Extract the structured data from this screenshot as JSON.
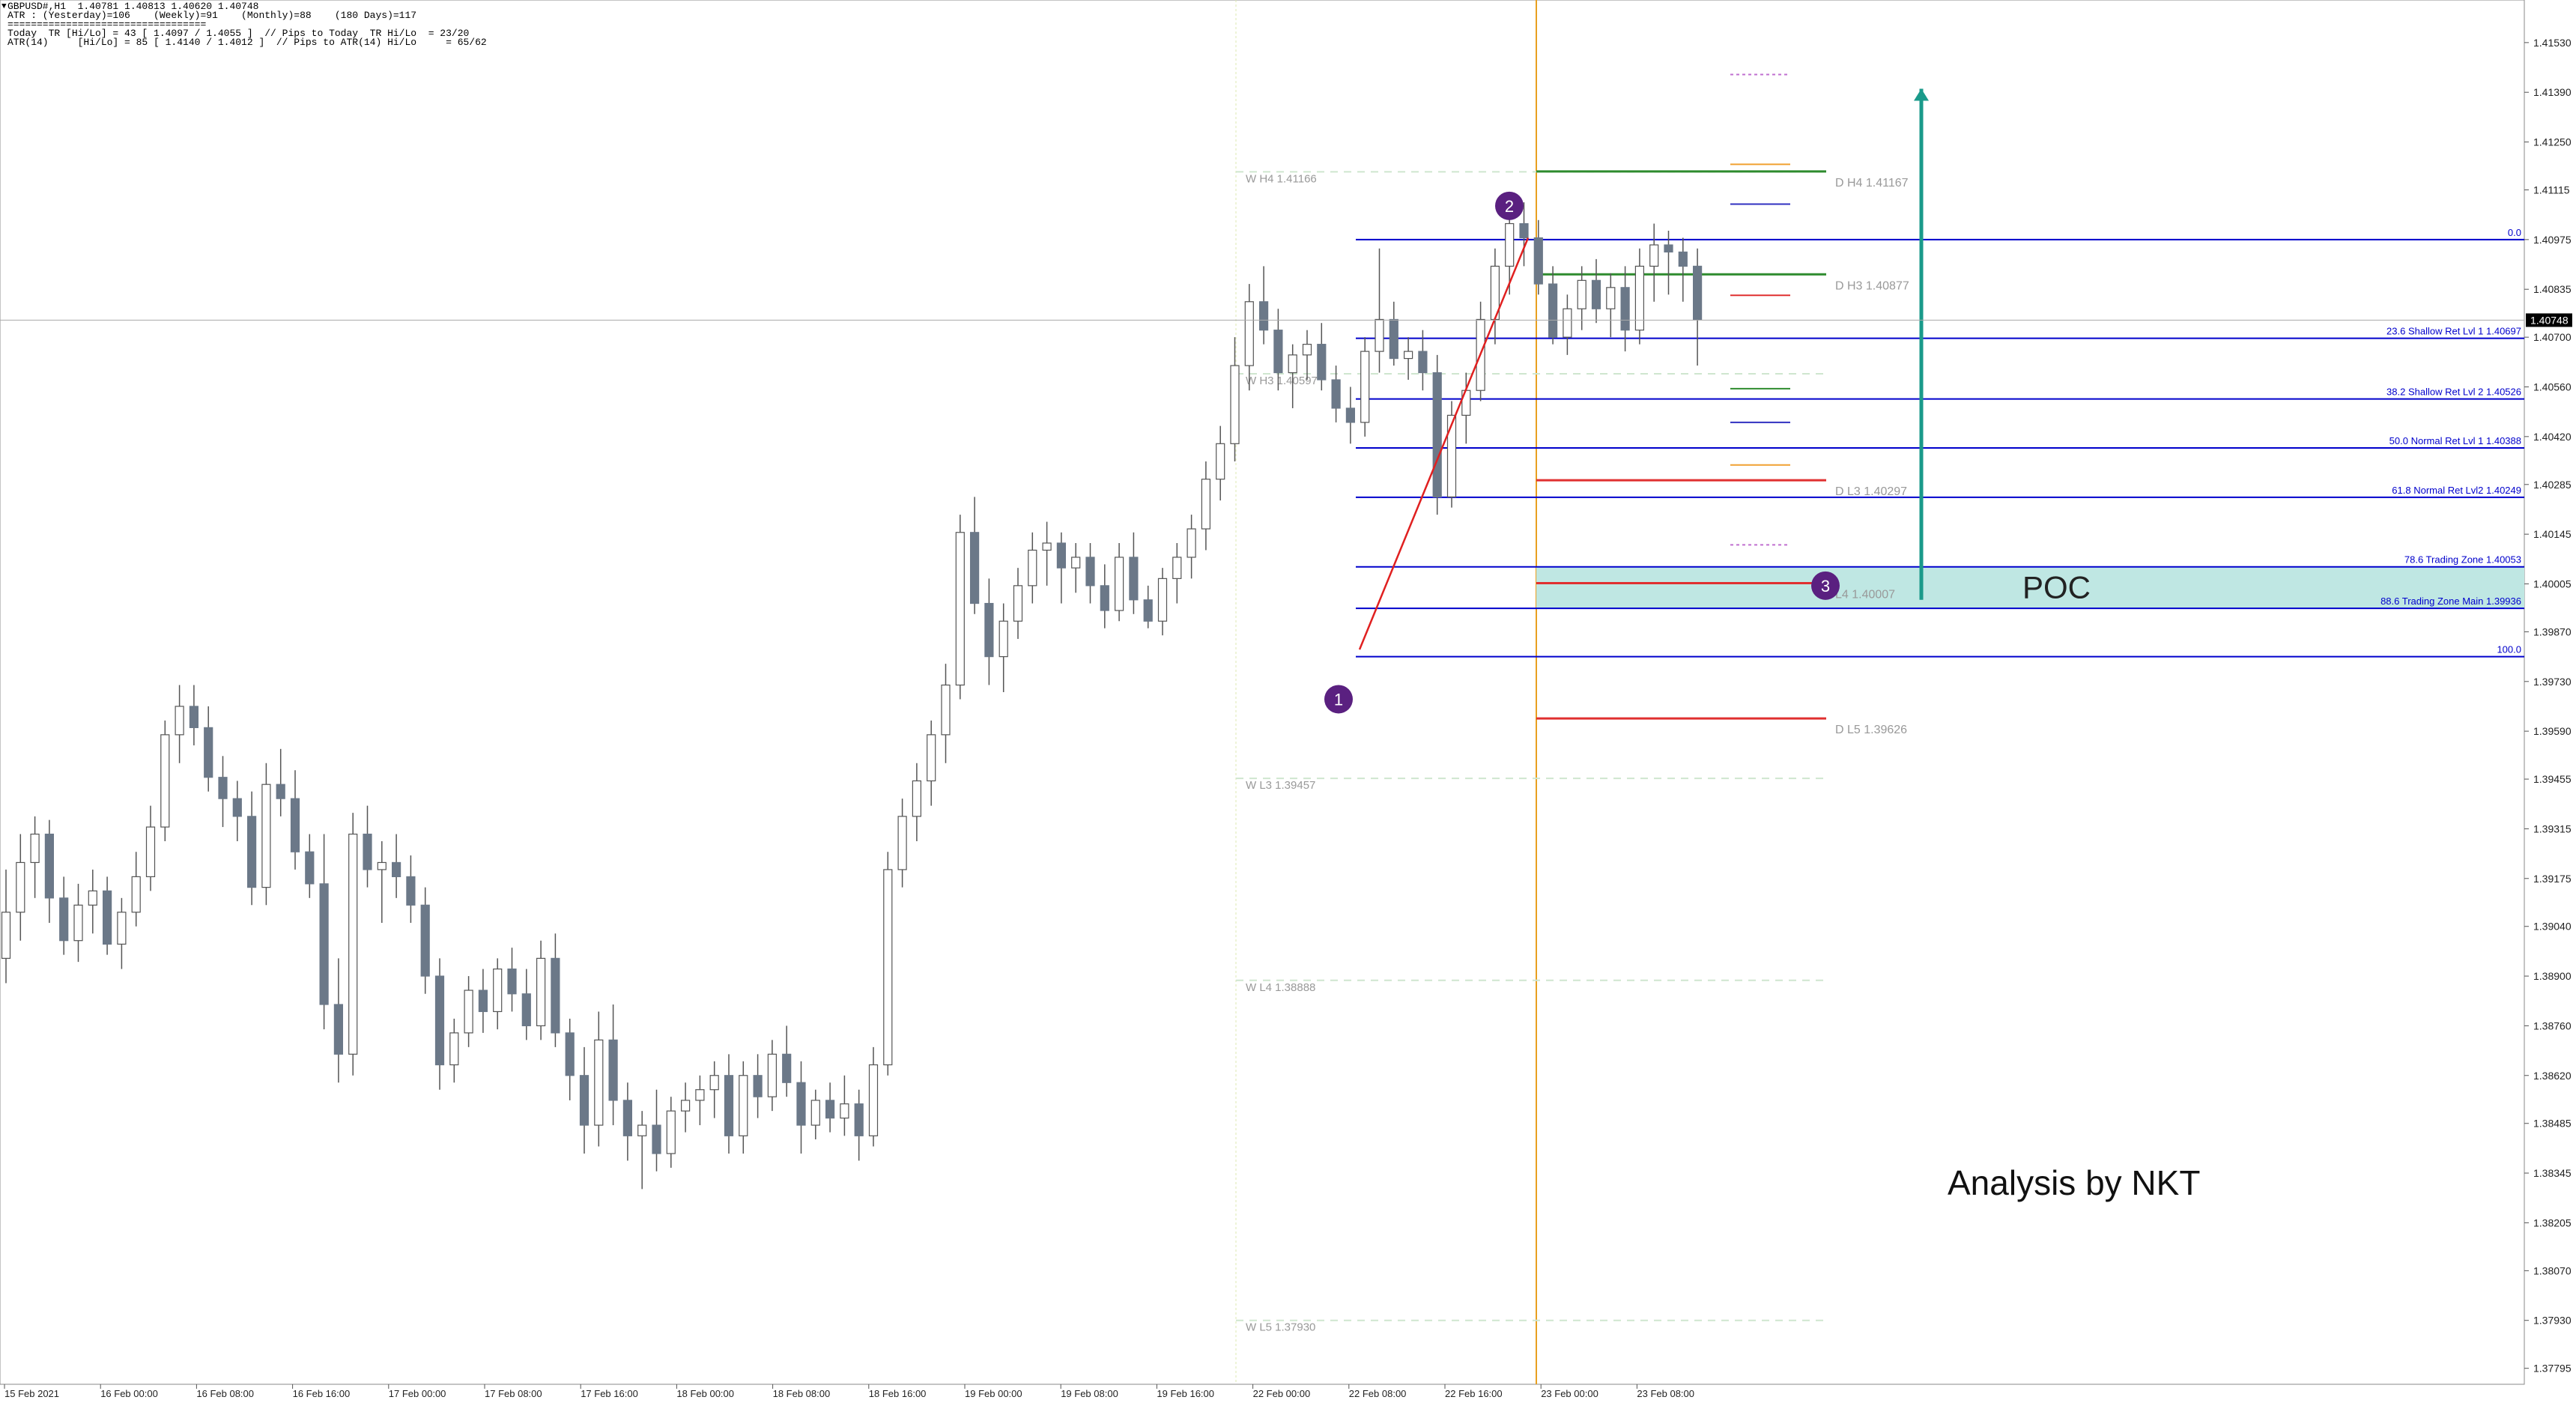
{
  "header": {
    "symbol_line": "GBPUSD#,H1  1.40781 1.40813 1.40620 1.40748",
    "atr_line": "ATR : (Yesterday)=106    (Weekly)=91    (Monthly)=88    (180 Days)=117",
    "separator": "==================================",
    "today_line": "Today  TR [Hi/Lo] = 43 [ 1.4097 / 1.4055 ]  // Pips to Today  TR Hi/Lo  = 23/20",
    "atr14_line": "ATR(14)     [Hi/Lo] = 85 [ 1.4140 / 1.4012 ]  // Pips to ATR(14) Hi/Lo     = 65/62"
  },
  "price_axis": {
    "ticks": [
      "1.41530",
      "1.41390",
      "1.41250",
      "1.41115",
      "1.40975",
      "1.40835",
      "1.40700",
      "1.40560",
      "1.40420",
      "1.40285",
      "1.40145",
      "1.40005",
      "1.39870",
      "1.39730",
      "1.39590",
      "1.39455",
      "1.39315",
      "1.39175",
      "1.39040",
      "1.38900",
      "1.38760",
      "1.38620",
      "1.38485",
      "1.38345",
      "1.38205",
      "1.38070",
      "1.37930",
      "1.37795"
    ],
    "current_price": "1.40748"
  },
  "time_axis": {
    "labels": [
      "15 Feb 2021",
      "16 Feb 00:00",
      "16 Feb 08:00",
      "16 Feb 16:00",
      "17 Feb 00:00",
      "17 Feb 08:00",
      "17 Feb 16:00",
      "18 Feb 00:00",
      "18 Feb 08:00",
      "18 Feb 16:00",
      "19 Feb 00:00",
      "19 Feb 08:00",
      "19 Feb 16:00",
      "22 Feb 00:00",
      "22 Feb 08:00",
      "22 Feb 16:00",
      "23 Feb 00:00",
      "23 Feb 08:00"
    ]
  },
  "chart_data": {
    "type": "candlestick",
    "symbol": "GBPUSD#",
    "timeframe": "H1",
    "ylim": [
      1.3775,
      1.4165
    ],
    "candles": [
      [
        1.3895,
        1.392,
        1.3888,
        1.3908
      ],
      [
        1.3908,
        1.393,
        1.39,
        1.3922
      ],
      [
        1.3922,
        1.3935,
        1.3912,
        1.393
      ],
      [
        1.393,
        1.3934,
        1.3905,
        1.3912
      ],
      [
        1.3912,
        1.3918,
        1.3896,
        1.39
      ],
      [
        1.39,
        1.3916,
        1.3894,
        1.391
      ],
      [
        1.391,
        1.392,
        1.3902,
        1.3914
      ],
      [
        1.3914,
        1.3918,
        1.3896,
        1.3899
      ],
      [
        1.3899,
        1.3912,
        1.3892,
        1.3908
      ],
      [
        1.3908,
        1.3925,
        1.3904,
        1.3918
      ],
      [
        1.3918,
        1.3938,
        1.3914,
        1.3932
      ],
      [
        1.3932,
        1.3962,
        1.3928,
        1.3958
      ],
      [
        1.3958,
        1.3972,
        1.395,
        1.3966
      ],
      [
        1.3966,
        1.3972,
        1.3955,
        1.396
      ],
      [
        1.396,
        1.3966,
        1.3942,
        1.3946
      ],
      [
        1.3946,
        1.3952,
        1.3932,
        1.394
      ],
      [
        1.394,
        1.3945,
        1.3928,
        1.3935
      ],
      [
        1.3935,
        1.3942,
        1.391,
        1.3915
      ],
      [
        1.3915,
        1.395,
        1.391,
        1.3944
      ],
      [
        1.3944,
        1.3954,
        1.3935,
        1.394
      ],
      [
        1.394,
        1.3948,
        1.392,
        1.3925
      ],
      [
        1.3925,
        1.393,
        1.3912,
        1.3916
      ],
      [
        1.3916,
        1.393,
        1.3875,
        1.3882
      ],
      [
        1.3882,
        1.3895,
        1.386,
        1.3868
      ],
      [
        1.3868,
        1.3936,
        1.3862,
        1.393
      ],
      [
        1.393,
        1.3938,
        1.3915,
        1.392
      ],
      [
        1.392,
        1.3928,
        1.3905,
        1.3922
      ],
      [
        1.3922,
        1.393,
        1.3912,
        1.3918
      ],
      [
        1.3918,
        1.3924,
        1.3905,
        1.391
      ],
      [
        1.391,
        1.3915,
        1.3885,
        1.389
      ],
      [
        1.389,
        1.3895,
        1.3858,
        1.3865
      ],
      [
        1.3865,
        1.3878,
        1.386,
        1.3874
      ],
      [
        1.3874,
        1.389,
        1.387,
        1.3886
      ],
      [
        1.3886,
        1.3892,
        1.3874,
        1.388
      ],
      [
        1.388,
        1.3895,
        1.3875,
        1.3892
      ],
      [
        1.3892,
        1.3898,
        1.388,
        1.3885
      ],
      [
        1.3885,
        1.3892,
        1.3872,
        1.3876
      ],
      [
        1.3876,
        1.39,
        1.3872,
        1.3895
      ],
      [
        1.3895,
        1.3902,
        1.387,
        1.3874
      ],
      [
        1.3874,
        1.3878,
        1.3855,
        1.3862
      ],
      [
        1.3862,
        1.387,
        1.384,
        1.3848
      ],
      [
        1.3848,
        1.388,
        1.3842,
        1.3872
      ],
      [
        1.3872,
        1.3882,
        1.3848,
        1.3855
      ],
      [
        1.3855,
        1.386,
        1.3838,
        1.3845
      ],
      [
        1.3845,
        1.3852,
        1.383,
        1.3848
      ],
      [
        1.3848,
        1.3858,
        1.3835,
        1.384
      ],
      [
        1.384,
        1.3856,
        1.3836,
        1.3852
      ],
      [
        1.3852,
        1.386,
        1.3846,
        1.3855
      ],
      [
        1.3855,
        1.3862,
        1.3848,
        1.3858
      ],
      [
        1.3858,
        1.3866,
        1.385,
        1.3862
      ],
      [
        1.3862,
        1.3868,
        1.384,
        1.3845
      ],
      [
        1.3845,
        1.3866,
        1.384,
        1.3862
      ],
      [
        1.3862,
        1.3868,
        1.385,
        1.3856
      ],
      [
        1.3856,
        1.3872,
        1.3852,
        1.3868
      ],
      [
        1.3868,
        1.3876,
        1.3856,
        1.386
      ],
      [
        1.386,
        1.3866,
        1.384,
        1.3848
      ],
      [
        1.3848,
        1.3858,
        1.3844,
        1.3855
      ],
      [
        1.3855,
        1.386,
        1.3846,
        1.385
      ],
      [
        1.385,
        1.3862,
        1.3845,
        1.3854
      ],
      [
        1.3854,
        1.3858,
        1.3838,
        1.3845
      ],
      [
        1.3845,
        1.387,
        1.3842,
        1.3865
      ],
      [
        1.3865,
        1.3925,
        1.3862,
        1.392
      ],
      [
        1.392,
        1.394,
        1.3915,
        1.3935
      ],
      [
        1.3935,
        1.395,
        1.3928,
        1.3945
      ],
      [
        1.3945,
        1.3962,
        1.3938,
        1.3958
      ],
      [
        1.3958,
        1.3978,
        1.395,
        1.3972
      ],
      [
        1.3972,
        1.402,
        1.3968,
        1.4015
      ],
      [
        1.4015,
        1.4025,
        1.3992,
        1.3995
      ],
      [
        1.3995,
        1.4002,
        1.3972,
        1.398
      ],
      [
        1.398,
        1.3995,
        1.397,
        1.399
      ],
      [
        1.399,
        1.4005,
        1.3985,
        1.4
      ],
      [
        1.4,
        1.4015,
        1.3995,
        1.401
      ],
      [
        1.401,
        1.4018,
        1.4,
        1.4012
      ],
      [
        1.4012,
        1.4015,
        1.3995,
        1.4005
      ],
      [
        1.4005,
        1.4012,
        1.3998,
        1.4008
      ],
      [
        1.4008,
        1.4012,
        1.3995,
        1.4
      ],
      [
        1.4,
        1.4006,
        1.3988,
        1.3993
      ],
      [
        1.3993,
        1.4012,
        1.399,
        1.4008
      ],
      [
        1.4008,
        1.4015,
        1.3992,
        1.3996
      ],
      [
        1.3996,
        1.4,
        1.3988,
        1.399
      ],
      [
        1.399,
        1.4005,
        1.3986,
        1.4002
      ],
      [
        1.4002,
        1.4012,
        1.3995,
        1.4008
      ],
      [
        1.4008,
        1.402,
        1.4002,
        1.4016
      ],
      [
        1.4016,
        1.4035,
        1.401,
        1.403
      ],
      [
        1.403,
        1.4045,
        1.4024,
        1.404
      ],
      [
        1.404,
        1.407,
        1.4035,
        1.4062
      ],
      [
        1.4062,
        1.4085,
        1.4055,
        1.408
      ],
      [
        1.408,
        1.409,
        1.4068,
        1.4072
      ],
      [
        1.4072,
        1.4078,
        1.4055,
        1.406
      ],
      [
        1.406,
        1.4068,
        1.405,
        1.4065
      ],
      [
        1.4065,
        1.4072,
        1.4058,
        1.4068
      ],
      [
        1.4068,
        1.4074,
        1.4055,
        1.4058
      ],
      [
        1.4058,
        1.4062,
        1.4046,
        1.405
      ],
      [
        1.405,
        1.4056,
        1.404,
        1.4046
      ],
      [
        1.4046,
        1.407,
        1.4042,
        1.4066
      ],
      [
        1.4066,
        1.4095,
        1.406,
        1.4075
      ],
      [
        1.4075,
        1.408,
        1.4062,
        1.4064
      ],
      [
        1.4064,
        1.407,
        1.4058,
        1.4066
      ],
      [
        1.4066,
        1.4072,
        1.4055,
        1.406
      ],
      [
        1.406,
        1.4065,
        1.402,
        1.4025
      ],
      [
        1.4025,
        1.4052,
        1.4022,
        1.4048
      ],
      [
        1.4048,
        1.406,
        1.404,
        1.4055
      ],
      [
        1.4055,
        1.408,
        1.4052,
        1.4075
      ],
      [
        1.4075,
        1.4095,
        1.4068,
        1.409
      ],
      [
        1.409,
        1.411,
        1.4082,
        1.4102
      ],
      [
        1.4102,
        1.4108,
        1.409,
        1.4098
      ],
      [
        1.4098,
        1.4103,
        1.4082,
        1.4085
      ],
      [
        1.4085,
        1.409,
        1.4068,
        1.407
      ],
      [
        1.407,
        1.4082,
        1.4065,
        1.4078
      ],
      [
        1.4078,
        1.409,
        1.4072,
        1.4086
      ],
      [
        1.4086,
        1.4092,
        1.4074,
        1.4078
      ],
      [
        1.4078,
        1.4088,
        1.407,
        1.4084
      ],
      [
        1.4084,
        1.409,
        1.4066,
        1.4072
      ],
      [
        1.4072,
        1.4095,
        1.4068,
        1.409
      ],
      [
        1.409,
        1.4102,
        1.408,
        1.4096
      ],
      [
        1.4096,
        1.41,
        1.4082,
        1.4094
      ],
      [
        1.4094,
        1.4098,
        1.408,
        1.409
      ],
      [
        1.409,
        1.4095,
        1.4062,
        1.4075
      ]
    ],
    "fibonacci_levels": [
      {
        "label": "0.0",
        "price": 1.40975
      },
      {
        "label": "23.6 Shallow Ret Lvl 1 1.40697",
        "price": 1.40697
      },
      {
        "label": "38.2 Shallow Ret Lvl 2 1.40526",
        "price": 1.40526
      },
      {
        "label": "50.0 Normal Ret Lvl 1 1.40388",
        "price": 1.40388
      },
      {
        "label": "61.8 Normal Ret Lvl2 1.40249",
        "price": 1.40249
      },
      {
        "label": "78.6 Trading Zone 1.40053",
        "price": 1.40053
      },
      {
        "label": "88.6 Trading Zone Main 1.39936",
        "price": 1.39936
      },
      {
        "label": "100.0",
        "price": 1.398
      }
    ],
    "daily_levels": [
      {
        "label": "D  H4 1.41167",
        "price": 1.41167,
        "color": "#2e8b2e"
      },
      {
        "label": "D  H3 1.40877",
        "price": 1.40877,
        "color": "#2e8b2e"
      },
      {
        "label": "D  L3 1.40297",
        "price": 1.40297,
        "color": "#e03030"
      },
      {
        "label": "L4 1.40007",
        "price": 1.40007,
        "color": "#e03030"
      },
      {
        "label": "D  L5 1.39626",
        "price": 1.39626,
        "color": "#e03030"
      }
    ],
    "weekly_levels": [
      {
        "label": "W  H4 1.41166",
        "price": 1.41166
      },
      {
        "label": "W  H3 1.40597",
        "price": 1.40597
      },
      {
        "label": "W  L3 1.39457",
        "price": 1.39457
      },
      {
        "label": "W  L4 1.38888",
        "price": 1.38888
      },
      {
        "label": "W  L5 1.37930",
        "price": 1.3793
      }
    ],
    "poc_zone": {
      "label": "POC",
      "top": 1.40053,
      "bottom": 1.39936
    },
    "markers": [
      {
        "label": "1",
        "price": 1.3968
      },
      {
        "label": "2",
        "price": 1.4107
      },
      {
        "label": "3",
        "price": 1.4
      }
    ],
    "annotation": "Analysis by NKT",
    "colors": {
      "bull": "#ffffff",
      "bear": "#6b7888",
      "fib": "#0000cc",
      "poc": "#bfe7e3",
      "arrow": "#1a9a8a",
      "marker": "#5a2080",
      "vline": "#e8a020"
    }
  }
}
